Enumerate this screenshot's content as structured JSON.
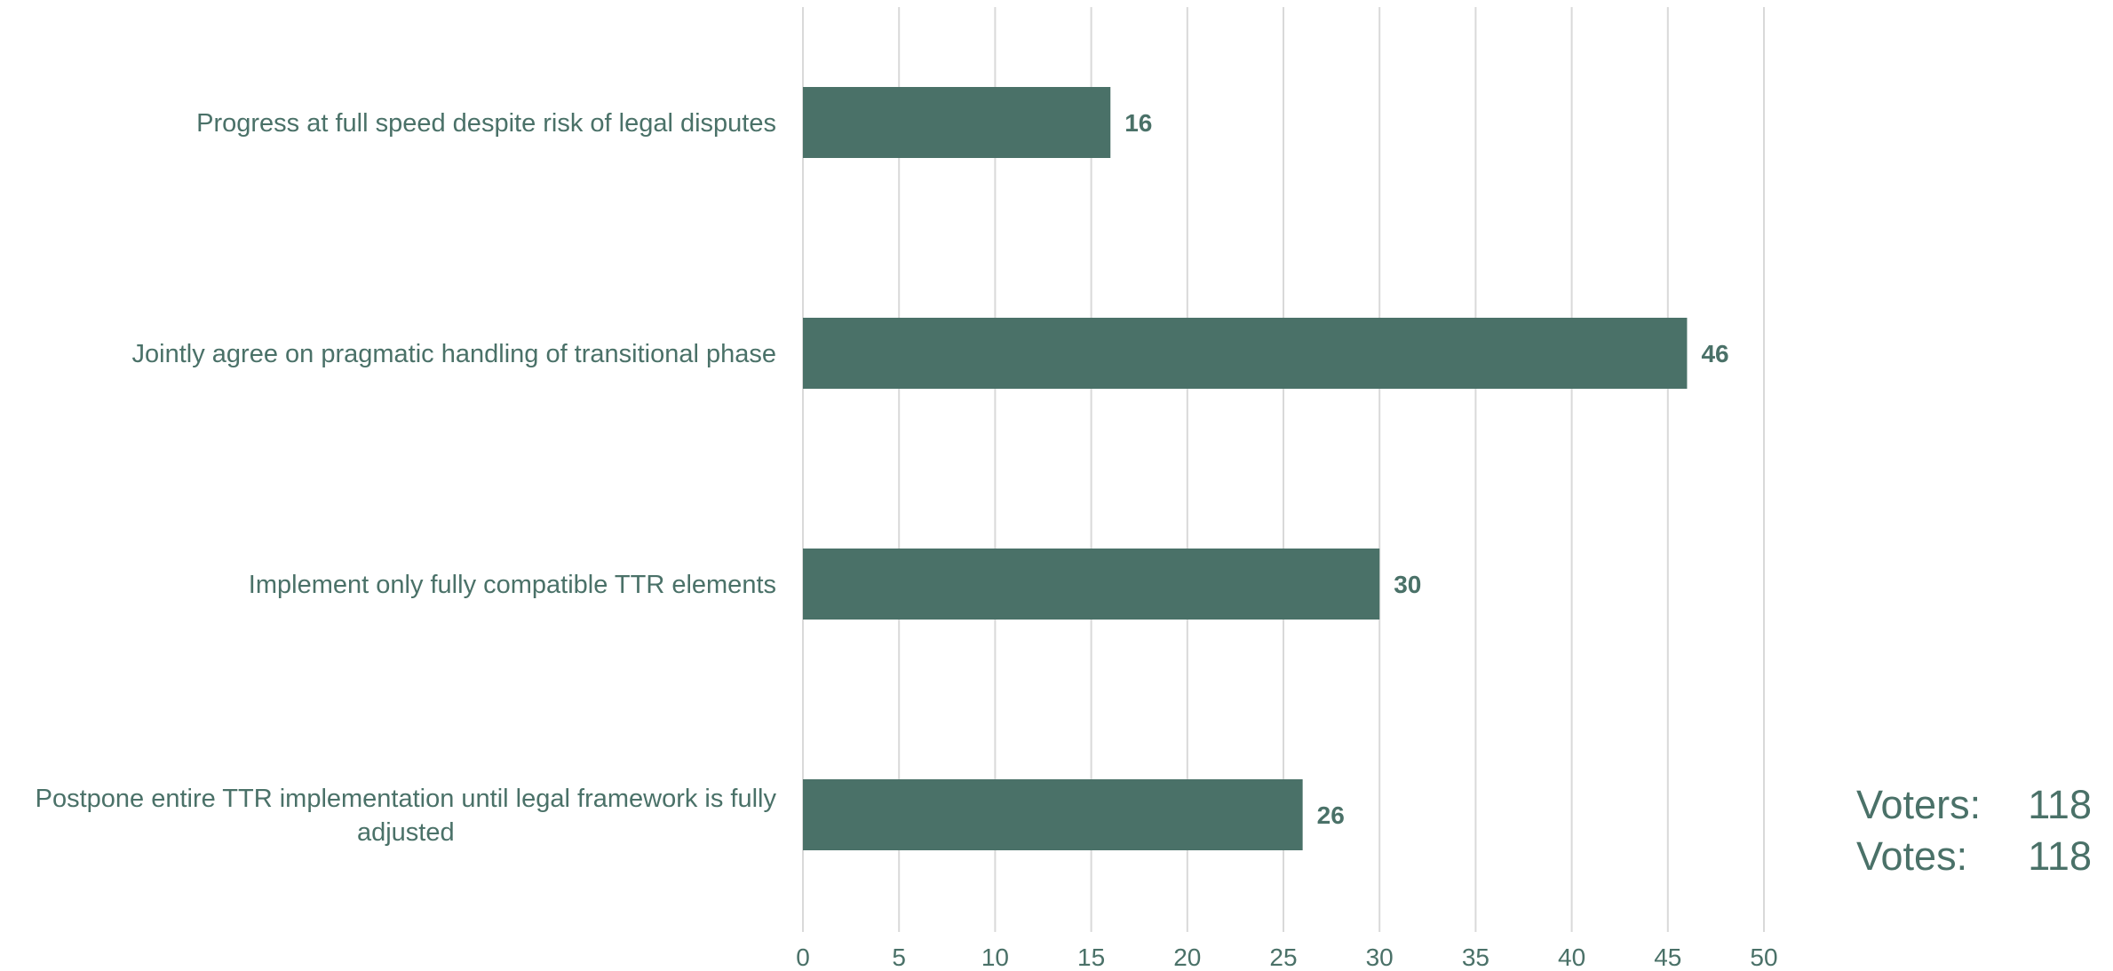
{
  "colors": {
    "bar": "#4a7168",
    "text": "#4a7168",
    "grid": "#d9d9d9"
  },
  "chart_data": {
    "type": "bar",
    "orientation": "horizontal",
    "categories": [
      "Progress at full speed despite risk of legal disputes",
      "Jointly agree on pragmatic handling of transitional phase",
      "Implement only fully compatible TTR elements",
      "Postpone entire TTR implementation until legal framework is fully adjusted"
    ],
    "values": [
      16,
      46,
      30,
      26
    ],
    "xlim": [
      0,
      50
    ],
    "ticks": [
      "0",
      "5",
      "10",
      "15",
      "20",
      "25",
      "30",
      "35",
      "40",
      "45",
      "50"
    ],
    "tick_values": [
      0,
      5,
      10,
      15,
      20,
      25,
      30,
      35,
      40,
      45,
      50
    ],
    "grid": true,
    "data_labels": true
  },
  "stats": {
    "voters_label": "Voters:",
    "voters_value": "118",
    "votes_label": "Votes:",
    "votes_value": "118"
  }
}
